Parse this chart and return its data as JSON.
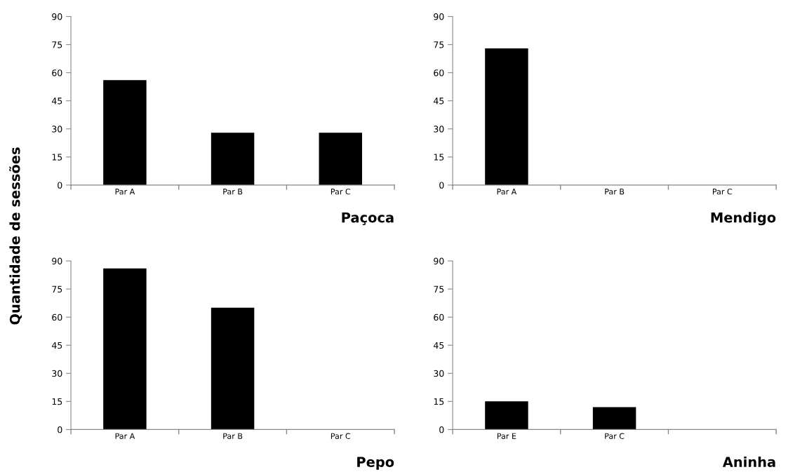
{
  "chart_data": [
    {
      "type": "bar",
      "title": "Paçoca",
      "ylabel": "Quantidade de sessões",
      "categories": [
        "Par A",
        "Par B",
        "Par C"
      ],
      "values": [
        56,
        28,
        28
      ],
      "color": "#000000",
      "ylim": [
        0,
        90
      ],
      "yticks": [
        0,
        15,
        30,
        45,
        60,
        75,
        90
      ],
      "grid": false
    },
    {
      "type": "bar",
      "title": "Mendigo",
      "categories": [
        "Par A",
        "Par B",
        "Par C"
      ],
      "values": [
        73,
        0,
        0
      ],
      "color": "#000000",
      "ylim": [
        0,
        90
      ],
      "yticks": [
        0,
        15,
        30,
        45,
        60,
        75,
        90
      ],
      "grid": false
    },
    {
      "type": "bar",
      "title": "Pepo",
      "categories": [
        "Par A",
        "Par B",
        "Par C"
      ],
      "values": [
        86,
        65,
        0
      ],
      "color": "#000000",
      "ylim": [
        0,
        90
      ],
      "yticks": [
        0,
        15,
        30,
        45,
        60,
        75,
        90
      ],
      "grid": false
    },
    {
      "type": "bar",
      "title": "Aninha",
      "categories": [
        "Par E",
        "Par C",
        null
      ],
      "values": [
        15,
        12,
        0
      ],
      "color": "#000000",
      "ylim": [
        0,
        90
      ],
      "yticks": [
        0,
        15,
        30,
        45,
        60,
        75,
        90
      ],
      "grid": false
    }
  ]
}
